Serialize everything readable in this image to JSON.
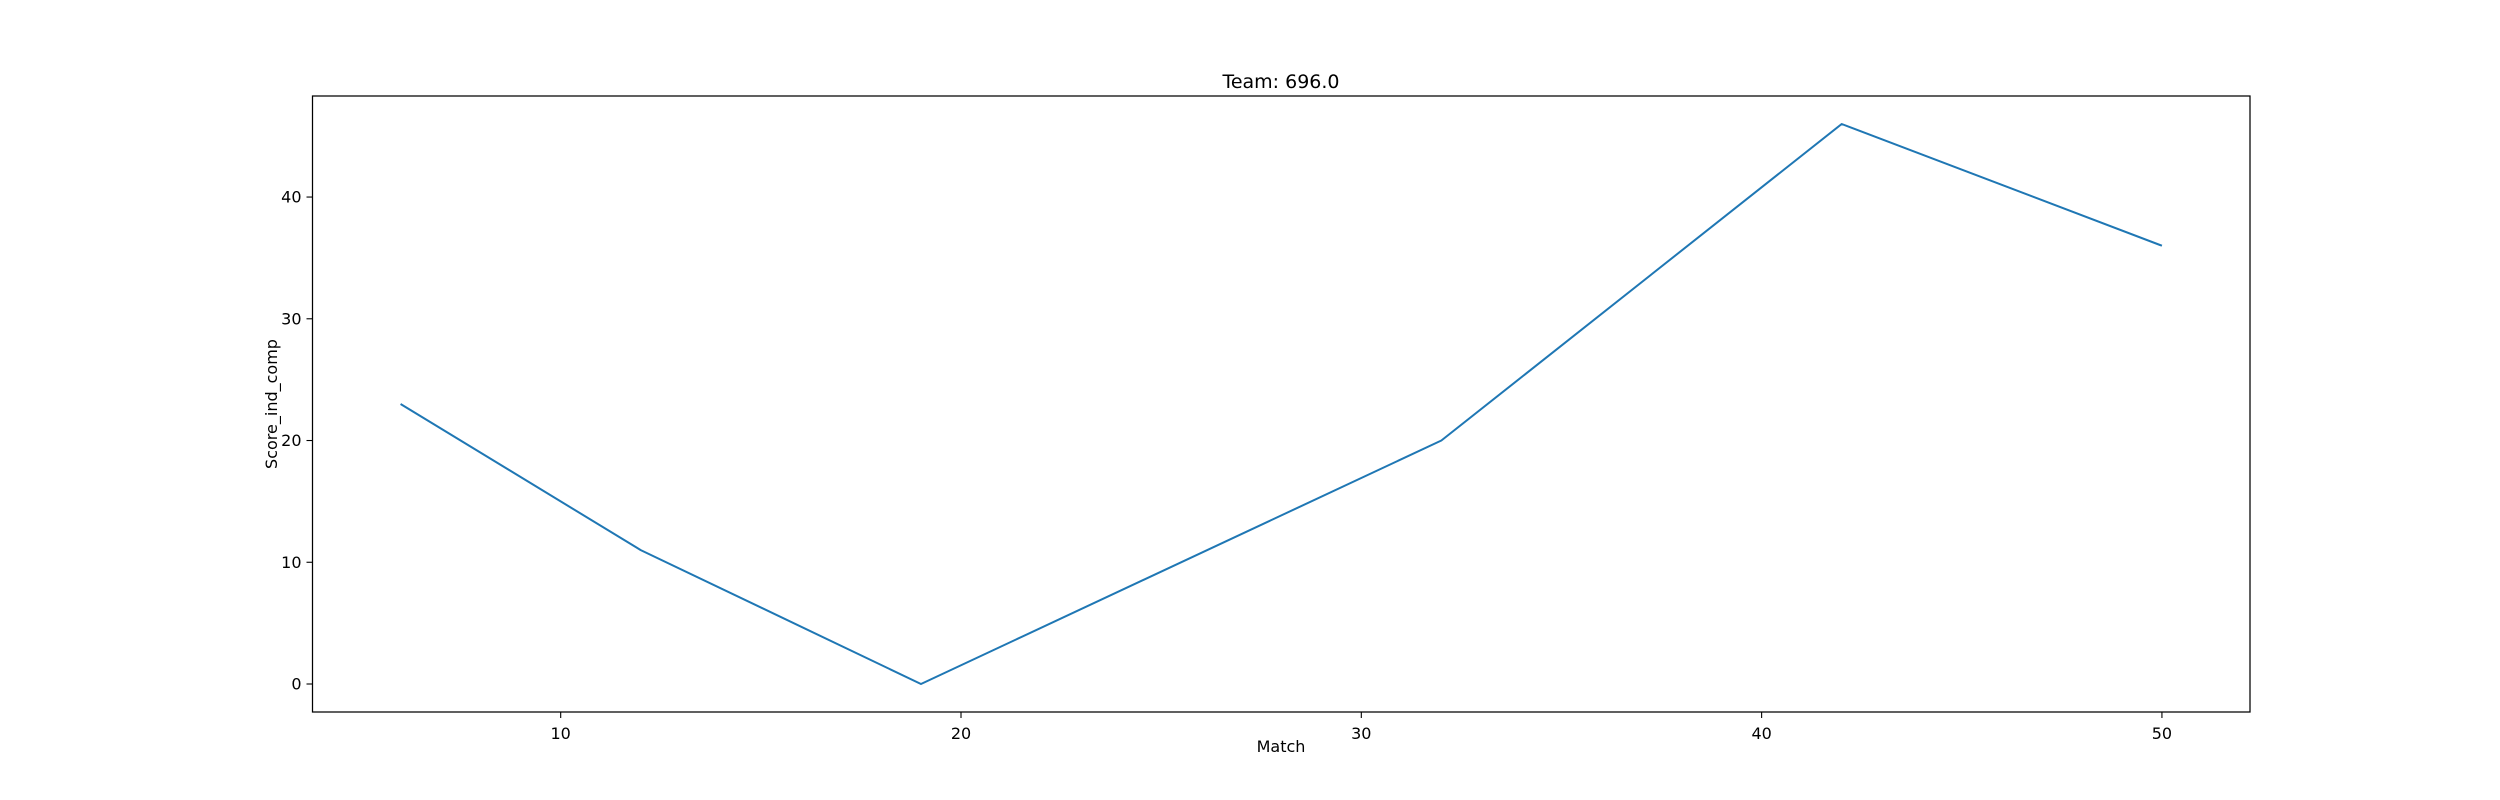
{
  "chart_data": {
    "type": "line",
    "title": "Team: 696.0",
    "xlabel": "Match",
    "ylabel": "Score_ind_comp",
    "xlim": [
      3.8,
      52.2
    ],
    "ylim": [
      -2.3,
      48.3
    ],
    "x_ticks": [
      10,
      20,
      30,
      40,
      50
    ],
    "y_ticks": [
      0,
      10,
      20,
      30,
      40
    ],
    "grid": false,
    "series": [
      {
        "color": "#1f77b4",
        "x": [
          6,
          12,
          19,
          32,
          42,
          50
        ],
        "y": [
          23,
          11,
          0,
          20,
          46,
          36
        ]
      }
    ]
  }
}
